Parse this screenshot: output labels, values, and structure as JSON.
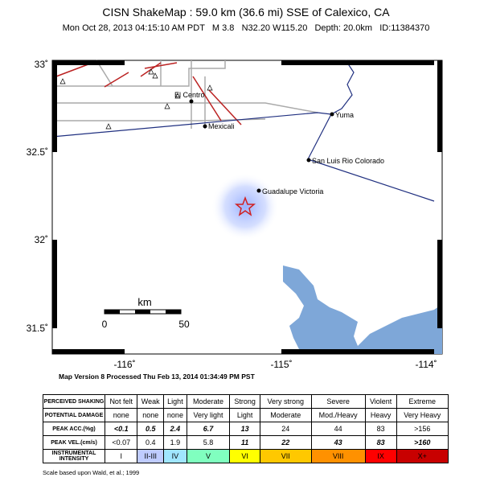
{
  "header": {
    "title": "CISN ShakeMap : 59.0 km (36.6 mi) SSE of Calexico, CA",
    "subtitle": "Mon Oct 28, 2013 04:15:10 AM PDT   M 3.8   N32.20 W115.20   Depth: 20.0km   ID:11384370"
  },
  "map": {
    "lat_labels": [
      "33˚",
      "32.5˚",
      "32˚",
      "31.5˚"
    ],
    "lon_labels": [
      "-116˚",
      "-115˚",
      "-114˚"
    ],
    "places": [
      "El Centro",
      "Mexicali",
      "Yuma",
      "San Luis Rio Colorado",
      "Guadalupe Victoria"
    ],
    "scale": {
      "unit": "km",
      "start": "0",
      "end": "50"
    }
  },
  "version": "Map Version 8 Processed Thu Feb 13, 2014 01:34:49 PM PST",
  "legend": {
    "rows": [
      {
        "label": "PERCEIVED SHAKING",
        "cells": [
          "Not felt",
          "Weak",
          "Light",
          "Moderate",
          "Strong",
          "Very strong",
          "Severe",
          "Violent",
          "Extreme"
        ]
      },
      {
        "label": "POTENTIAL DAMAGE",
        "cells": [
          "none",
          "none",
          "none",
          "Very light",
          "Light",
          "Moderate",
          "Mod./Heavy",
          "Heavy",
          "Very Heavy"
        ]
      },
      {
        "label": "PEAK ACC.(%g)",
        "cells": [
          "<0.1",
          "0.5",
          "2.4",
          "6.7",
          "13",
          "24",
          "44",
          "83",
          ">156"
        ]
      },
      {
        "label": "PEAK VEL.(cm/s)",
        "cells": [
          "<0.07",
          "0.4",
          "1.9",
          "5.8",
          "11",
          "22",
          "43",
          "83",
          ">160"
        ]
      },
      {
        "label": "INSTRUMENTAL INTENSITY",
        "cells": [
          "I",
          "II-III",
          "IV",
          "V",
          "VI",
          "VII",
          "VIII",
          "IX",
          "X+"
        ]
      }
    ]
  },
  "footnote": "Scale based upon Wald, et al.; 1999"
}
